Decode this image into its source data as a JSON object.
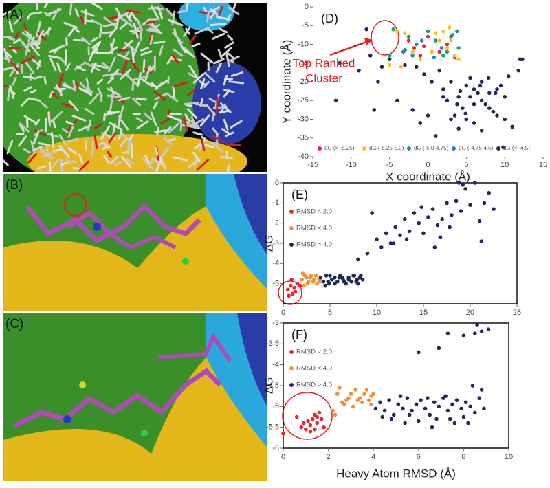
{
  "image_panels": [
    "(A)",
    "(B)",
    "(C)"
  ],
  "chart_data": [
    {
      "type": "scatter",
      "panel": "(D)",
      "frame": false,
      "legend": "bottom",
      "x_label": "X coordinate (Å)",
      "y_label": "Y coordinate (Å)",
      "xlim": [
        -15,
        15
      ],
      "xticks": [
        -15,
        -10,
        -5,
        0,
        5,
        10,
        15
      ],
      "ylim": [
        -40,
        0
      ],
      "yticks": [
        0,
        -5,
        -10,
        -15,
        -20,
        -25,
        -30,
        -35,
        -40
      ],
      "annotation": [
        "Top Ranked",
        "Cluster"
      ],
      "series": [
        {
          "name": "dG (> -5.25)",
          "color": "#e8262b",
          "x": [
            -2.5,
            -1.8,
            -1,
            0,
            1.5,
            2.5,
            3.5,
            -0.5
          ],
          "values": [
            -9,
            -11,
            -13,
            -8,
            -12,
            -10,
            -13.5,
            -10.5
          ]
        },
        {
          "name": "dG (-5.25-5.0)",
          "color": "#f5c12e",
          "x": [
            -4,
            -3,
            -2,
            -1,
            0.5,
            1,
            2,
            2.5,
            3,
            3.5,
            4,
            -3.5,
            -5,
            1.5,
            2.8
          ],
          "values": [
            -6.5,
            -7,
            -12,
            -14,
            -12,
            -7,
            -6.5,
            -11,
            -9,
            -13,
            -14,
            -16,
            -15.5,
            -9,
            -5.5
          ]
        },
        {
          "name": "dG (-5.0-4.75)",
          "color": "#1aa35a",
          "x": [
            -4.5,
            -2.5,
            -1.5,
            0,
            1,
            2,
            3,
            4,
            -5,
            -3,
            2.5,
            3.8
          ],
          "values": [
            -6,
            -8,
            -10,
            -6.5,
            -9,
            -13,
            -8,
            -11,
            -13,
            -11.5,
            -12,
            -6.5
          ]
        },
        {
          "name": "dG (-4.75-4.5)",
          "color": "#2f7fc1",
          "x": [
            -3.2,
            -0.8,
            1.8,
            3.2,
            -2,
            0.8
          ],
          "values": [
            -12,
            -9,
            -11,
            -7.5,
            -13,
            -13.5
          ]
        },
        {
          "name": "dG (< -4.5)",
          "color": "#1f2a5a",
          "x": [
            -8,
            -7.5,
            -6,
            -5,
            -3,
            -12,
            -9,
            -7,
            -4,
            -1,
            1,
            2,
            3,
            4,
            5,
            6,
            7,
            8,
            9,
            10,
            11,
            12,
            2.5,
            3.5,
            4.5,
            5.5,
            6.5,
            7.5,
            8.5,
            9.5,
            1.5,
            0.5,
            -0.5,
            3,
            4,
            5,
            6,
            7,
            8,
            9,
            10,
            2,
            6,
            7,
            5.5,
            4.2,
            11.8,
            12.3,
            9.8,
            3.8,
            -6.5,
            -2,
            0,
            6.8,
            7.9,
            4.9,
            8.8,
            -1.5,
            10.5,
            -11.5
          ],
          "values": [
            -6,
            -13,
            -16,
            -14,
            -15.5,
            -25,
            -17,
            -27.5,
            -25,
            -31,
            -34.5,
            -22,
            -20,
            -24,
            -21,
            -22,
            -20,
            -23,
            -22,
            -30,
            -32,
            -14,
            -25,
            -29,
            -27,
            -24,
            -23,
            -26,
            -28,
            -21,
            -17,
            -20,
            -18,
            -30,
            -32.5,
            -30,
            -26,
            -25,
            -27,
            -29,
            -24,
            -24,
            -31,
            -33,
            -19,
            -22.5,
            -17,
            -14,
            -37.5,
            -26,
            -20,
            -27.5,
            -29,
            -21,
            -19,
            -28.5,
            -23,
            -16,
            -18.5,
            -15
          ]
        }
      ]
    },
    {
      "type": "scatter",
      "panel": "(E)",
      "frame": true,
      "legend": "upper left",
      "y_label": "ΔG",
      "xlim": [
        0,
        25
      ],
      "xticks": [
        0,
        5,
        10,
        15,
        20,
        25
      ],
      "ylim": [
        -6,
        0
      ],
      "yticks": [
        0,
        -1,
        -2,
        -3,
        -4,
        -5
      ],
      "series": [
        {
          "name": "RMSD < 2.0",
          "color": "#e8262b",
          "x": [
            0.5,
            0.8,
            1,
            1.2,
            1.5,
            0.9,
            1.3,
            1.8,
            0.6
          ],
          "values": [
            -5.3,
            -5.1,
            -5.5,
            -5.2,
            -5,
            -4.8,
            -5.4,
            -5.1,
            -5.6
          ]
        },
        {
          "name": "RMSD < 4.0",
          "color": "#f0913a",
          "x": [
            2,
            2.3,
            2.6,
            2.9,
            3.2,
            3.5,
            3.8,
            2.2,
            2.7,
            3,
            3.3,
            3.6,
            2.5,
            3.9,
            2.1
          ],
          "values": [
            -4.8,
            -4.6,
            -5,
            -4.7,
            -4.9,
            -4.6,
            -4.8,
            -5.1,
            -4.9,
            -4.6,
            -4.8,
            -5,
            -4.7,
            -4.9,
            -4.5
          ]
        },
        {
          "name": "RMSD > 4.0",
          "color": "#1f2a5a",
          "x": [
            4,
            4.3,
            4.6,
            4.9,
            5.2,
            5.5,
            5.8,
            6.1,
            6.4,
            6.7,
            7,
            7.3,
            7.6,
            7.9,
            8.2,
            8.5,
            4.5,
            5,
            5.5,
            6,
            6.5,
            7,
            7.5,
            8,
            4.8,
            6.3,
            7.8,
            8.3,
            8,
            9,
            10,
            10.5,
            11,
            11.5,
            12,
            12.5,
            13,
            13.5,
            14,
            14.5,
            15,
            15.5,
            16,
            16.5,
            17,
            17.5,
            18,
            18.5,
            19,
            19.5,
            20,
            20.5,
            21,
            21.5,
            22,
            22.5,
            9.5,
            11.8,
            13.2,
            14.8,
            16.2,
            17.8,
            18.8,
            19.2,
            21.2,
            16.8
          ],
          "values": [
            -4.7,
            -4.9,
            -4.6,
            -5,
            -4.8,
            -4.7,
            -4.9,
            -4.6,
            -4.8,
            -5,
            -4.7,
            -4.9,
            -4.6,
            -4.8,
            -4.7,
            -4.8,
            -5.1,
            -4.6,
            -5,
            -4.7,
            -4.9,
            -4.8,
            -4.6,
            -5,
            -4.9,
            -4.7,
            -4.9,
            -4.6,
            -3.8,
            -3.5,
            -2.8,
            -3.2,
            -2.5,
            -3,
            -2.2,
            -2.6,
            -1.8,
            -2.4,
            -1.5,
            -2,
            -2.5,
            -1.7,
            -1.3,
            -2.1,
            -1.8,
            -1,
            -1.6,
            -0.9,
            -1.4,
            -0.3,
            -1.1,
            0,
            -1.9,
            -1,
            -0.5,
            -1.3,
            -1.5,
            -3,
            -2.8,
            -1.2,
            -3.2,
            -2.2,
            0,
            -0.1,
            -2.9,
            -2.7
          ]
        }
      ]
    },
    {
      "type": "scatter",
      "panel": "(F)",
      "frame": true,
      "legend": "upper left",
      "x_label": "Heavy Atom RMSD (Å)",
      "y_label": "ΔG",
      "xlim": [
        0,
        10
      ],
      "xticks": [
        0,
        2,
        4,
        6,
        8,
        10
      ],
      "ylim": [
        -6,
        -3
      ],
      "yticks": [
        -3,
        -3.5,
        -4,
        -4.5,
        -5,
        -5.5,
        -6
      ],
      "series": [
        {
          "name": "RMSD < 2.0",
          "color": "#e8262b",
          "x": [
            0,
            0.6,
            0.8,
            1,
            1.1,
            1.2,
            1.3,
            1.4,
            1.5,
            1.6,
            1.7,
            1.8,
            1.2,
            1.5,
            0.9,
            1.4
          ],
          "values": [
            -5.65,
            -5.25,
            -5.5,
            -5.55,
            -5.35,
            -5.45,
            -5.3,
            -5.2,
            -5.4,
            -5.15,
            -5.3,
            -5.5,
            -5.6,
            -5.25,
            -5.4,
            -5.55
          ]
        },
        {
          "name": "RMSD < 4.0",
          "color": "#f0913a",
          "x": [
            2.2,
            2.4,
            2.5,
            2.6,
            2.8,
            3,
            3.1,
            3.2,
            3.4,
            3.5,
            3.6,
            3.7,
            3.8,
            3.9,
            4,
            2.3,
            2.7,
            3.3,
            3.9,
            2.9
          ],
          "values": [
            -5.1,
            -4.7,
            -4.55,
            -4.9,
            -4.85,
            -4.7,
            -5,
            -4.6,
            -4.8,
            -4.9,
            -4.7,
            -4.6,
            -4.85,
            -4.75,
            -4.7,
            -5.2,
            -4.95,
            -4.85,
            -4.95,
            -4.8
          ]
        },
        {
          "name": "RMSD > 4.0",
          "color": "#1f2a5a",
          "x": [
            4.1,
            4.3,
            4.5,
            4.7,
            4.9,
            5.1,
            5.3,
            5.5,
            5.7,
            5.9,
            6.1,
            6.3,
            6.5,
            6.7,
            6.9,
            7.1,
            7.3,
            7.5,
            7.7,
            7.9,
            8.1,
            8.3,
            8.5,
            8.7,
            8.9,
            4.4,
            4.8,
            5.2,
            5.6,
            6,
            6.4,
            6.8,
            7.2,
            7.6,
            8,
            8.4,
            8.8,
            5.4,
            6.6,
            7.4,
            8.2,
            6,
            6.9,
            7.3,
            8,
            8.5,
            8.6,
            8.8,
            9.1
          ],
          "values": [
            -5.05,
            -4.9,
            -5.1,
            -4.85,
            -5.2,
            -4.95,
            -5.05,
            -4.8,
            -5.1,
            -4.95,
            -4.85,
            -5.05,
            -5.2,
            -4.9,
            -5,
            -4.8,
            -5.1,
            -4.95,
            -4.85,
            -5.05,
            -4.9,
            -5,
            -5.15,
            -4.8,
            -5.05,
            -5.25,
            -5.3,
            -4.75,
            -5.2,
            -5.35,
            -4.8,
            -5.3,
            -4.75,
            -5.4,
            -5.25,
            -4.5,
            -4.6,
            -5.4,
            -5.5,
            -5.3,
            -5.4,
            -3.7,
            -3.6,
            -3.25,
            -3.3,
            -3.25,
            -3.05,
            -3.2,
            -3.15
          ]
        }
      ]
    }
  ]
}
